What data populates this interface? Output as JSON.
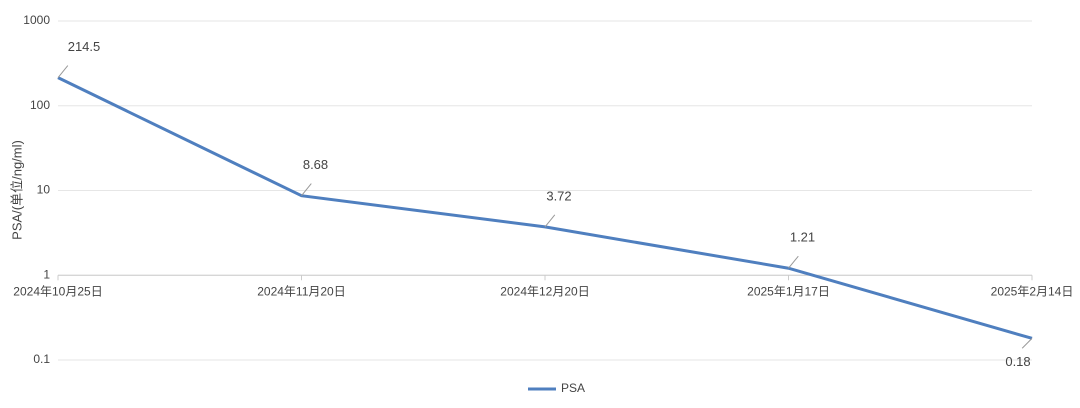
{
  "chart_data": {
    "type": "line",
    "y_label": "PSA/(单位/ng/ml)",
    "categories": [
      "2024年10月25日",
      "2024年11月20日",
      "2024年12月20日",
      "2025年1月17日",
      "2025年2月14日"
    ],
    "series": [
      {
        "name": "PSA",
        "color": "#4f7fbf",
        "values": [
          214.5,
          8.68,
          3.72,
          1.21,
          0.18
        ]
      }
    ],
    "ylim": [
      0.1,
      1000
    ],
    "yticks": [
      0.1,
      1,
      10,
      100,
      1000
    ],
    "log_scale": true,
    "grid": true,
    "legend": "bottom"
  }
}
